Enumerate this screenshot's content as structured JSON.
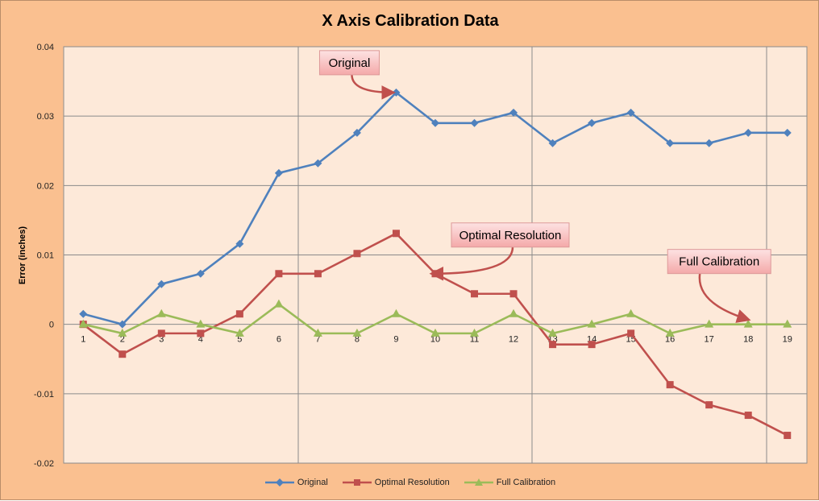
{
  "chart_data": {
    "type": "line",
    "title": "X Axis Calibration Data",
    "xlabel": "",
    "ylabel": "Error (inches)",
    "categories": [
      "1",
      "2",
      "3",
      "4",
      "5",
      "6",
      "7",
      "8",
      "9",
      "10",
      "11",
      "12",
      "13",
      "14",
      "15",
      "16",
      "17",
      "18",
      "19"
    ],
    "ylim": [
      -0.02,
      0.04
    ],
    "yticks": [
      -0.02,
      -0.01,
      0,
      0.01,
      0.02,
      0.03,
      0.04
    ],
    "ytick_labels": [
      "-0.02",
      "-0.01",
      "0",
      "0.01",
      "0.02",
      "0.03",
      "0.04"
    ],
    "grid": true,
    "legend_position": "bottom",
    "series": [
      {
        "name": "Original",
        "color": "#4f81bd",
        "marker": "diamond",
        "values": [
          0.0015,
          0.0,
          0.0058,
          0.0073,
          0.0116,
          0.0218,
          0.0232,
          0.0276,
          0.0334,
          0.029,
          0.029,
          0.0305,
          0.0261,
          0.029,
          0.0305,
          0.0261,
          0.0261,
          0.0276,
          0.0276
        ]
      },
      {
        "name": "Optimal Resolution",
        "color": "#c0504d",
        "marker": "square",
        "values": [
          0.0,
          -0.0043,
          -0.0013,
          -0.0013,
          0.0015,
          0.0073,
          0.0073,
          0.0102,
          0.0131,
          0.0073,
          0.0044,
          0.0044,
          -0.0029,
          -0.0029,
          -0.0013,
          -0.0087,
          -0.0116,
          -0.0131,
          -0.016
        ]
      },
      {
        "name": "Full Calibration",
        "color": "#9bbb59",
        "marker": "triangle",
        "values": [
          0.0,
          -0.0013,
          0.0015,
          0.0,
          -0.0013,
          0.0029,
          -0.0013,
          -0.0013,
          0.0015,
          -0.0013,
          -0.0013,
          0.0015,
          -0.0013,
          0.0,
          0.0015,
          -0.0013,
          0.0,
          0.0,
          0.0
        ]
      }
    ],
    "annotations": [
      {
        "text": "Original",
        "series": 0,
        "point": 8
      },
      {
        "text": "Optimal Resolution",
        "series": 1,
        "point": 9
      },
      {
        "text": "Full Calibration",
        "series": 2,
        "point": 17
      }
    ]
  }
}
